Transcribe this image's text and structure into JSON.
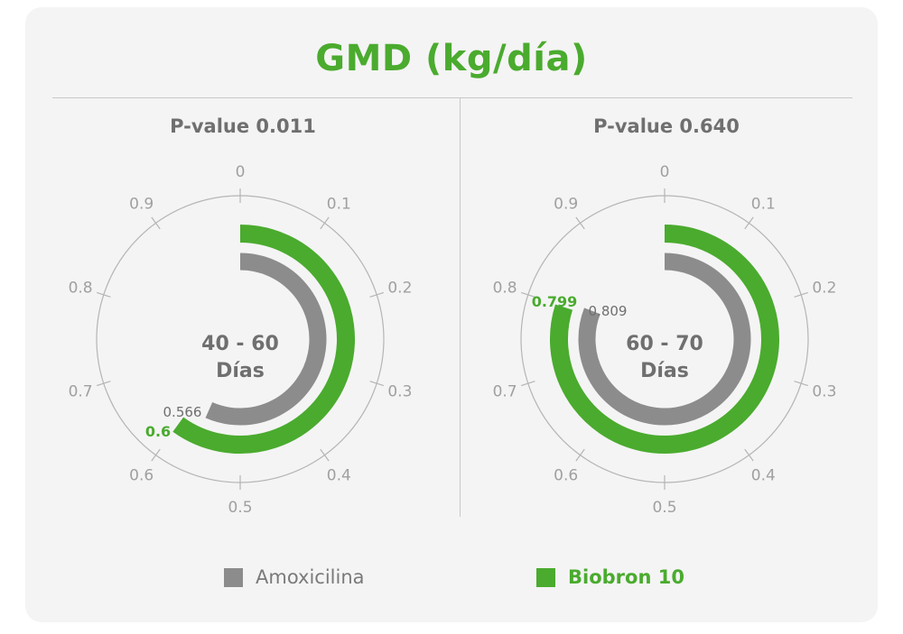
{
  "title": "GMD (kg/día)",
  "colors": {
    "amoxicilina": "#8c8c8c",
    "biobron": "#4aab2e",
    "axis": "#b5b5b5",
    "tick_text": "#a0a0a0"
  },
  "legend": [
    {
      "label": "Amoxicilina",
      "color": "#8c8c8c"
    },
    {
      "label": "Biobron 10",
      "color": "#4aab2e"
    }
  ],
  "chart_data": [
    {
      "type": "radial-bar",
      "pvalue": "P-value 0.011",
      "center_label": [
        "40 - 60",
        "Días"
      ],
      "axis_range": [
        0,
        1
      ],
      "tick_labels": [
        "0",
        "0.1",
        "0.2",
        "0.3",
        "0.4",
        "0.5",
        "0.6",
        "0.7",
        "0.8",
        "0.9"
      ],
      "series": [
        {
          "name": "Amoxicilina",
          "value": 0.566,
          "label": "0.566"
        },
        {
          "name": "Biobron 10",
          "value": 0.6,
          "label": "0.6"
        }
      ]
    },
    {
      "type": "radial-bar",
      "pvalue": "P-value 0.640",
      "center_label": [
        "60 - 70",
        "Días"
      ],
      "axis_range": [
        0,
        1
      ],
      "tick_labels": [
        "0",
        "0.1",
        "0.2",
        "0.3",
        "0.4",
        "0.5",
        "0.6",
        "0.7",
        "0.8",
        "0.9"
      ],
      "series": [
        {
          "name": "Amoxicilina",
          "value": 0.809,
          "label": "0.809"
        },
        {
          "name": "Biobron 10",
          "value": 0.799,
          "label": "0.799"
        }
      ]
    }
  ]
}
